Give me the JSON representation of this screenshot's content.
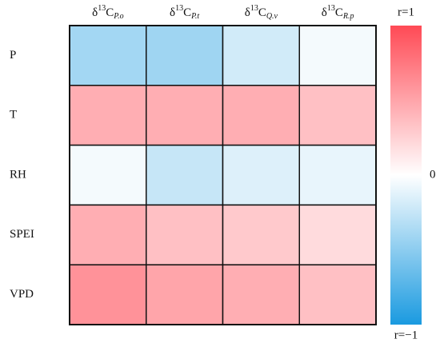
{
  "chart_data": {
    "type": "heatmap",
    "x_categories": [
      {
        "base": "δ",
        "sup": "13",
        "main": "C",
        "sub": "P.o"
      },
      {
        "base": "δ",
        "sup": "13",
        "main": "C",
        "sub": "P.t"
      },
      {
        "base": "δ",
        "sup": "13",
        "main": "C",
        "sub": "Q.v"
      },
      {
        "base": "δ",
        "sup": "13",
        "main": "C",
        "sub": "R.p"
      }
    ],
    "y_categories": [
      "P",
      "T",
      "RH",
      "SPEI",
      "VPD"
    ],
    "values": [
      [
        -0.4,
        -0.42,
        -0.2,
        -0.05
      ],
      [
        0.45,
        0.45,
        0.45,
        0.35
      ],
      [
        -0.05,
        -0.25,
        -0.15,
        -0.1
      ],
      [
        0.45,
        0.35,
        0.3,
        0.2
      ],
      [
        0.6,
        0.5,
        0.45,
        0.35
      ]
    ],
    "colors": {
      "low": "#1a9ae0",
      "mid": "#ffffff",
      "high": "#ff4a55"
    },
    "colorbar": {
      "lim": [
        -1,
        1
      ],
      "ticks": [
        {
          "value": 1,
          "label": "r=1"
        },
        {
          "value": 0,
          "label": "0"
        },
        {
          "value": -1,
          "label": "r=−1"
        }
      ]
    }
  }
}
